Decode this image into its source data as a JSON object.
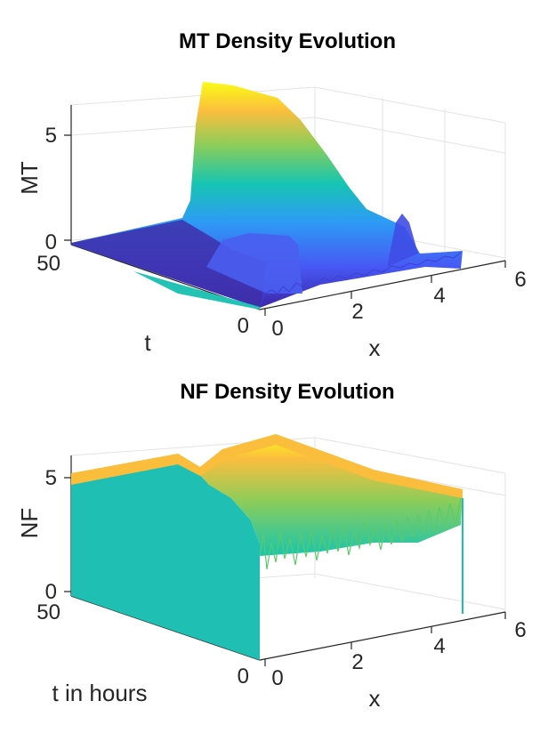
{
  "chart_data": [
    {
      "type": "surface",
      "title": "MT Density Evolution",
      "xlabel": "x",
      "ylabel": "t",
      "zlabel": "MT",
      "xlim": [
        0,
        6
      ],
      "ylim": [
        0,
        50
      ],
      "zlim": [
        0,
        6.5
      ],
      "xticks": [
        "0",
        "2",
        "4",
        "6"
      ],
      "yticks": [
        "0",
        "50"
      ],
      "zticks": [
        "0",
        "5"
      ],
      "colormap": [
        "#3e26a8",
        "#4758f4",
        "#2d9bf5",
        "#16c5b1",
        "#8ccd59",
        "#fbbe3e",
        "#f9fb15"
      ],
      "grid": true,
      "profile_x": [
        0,
        0.5,
        1.0,
        1.5,
        2.0,
        2.5,
        3.0,
        3.5,
        4.0,
        4.5,
        4.9
      ],
      "profile_at_t50": [
        6.2,
        6.0,
        5.5,
        4.2,
        2.5,
        1.2,
        0.6,
        0.3,
        0.1,
        0.05,
        0.05
      ],
      "profile_at_t0": [
        0.5,
        0.3,
        0.2,
        1.0,
        0.1,
        0.0,
        0.1,
        1.1,
        0.1,
        0.05,
        0.1
      ]
    },
    {
      "type": "surface",
      "title": "NF Density Evolution",
      "xlabel": "x",
      "ylabel": "t in hours",
      "zlabel": "NF",
      "xlim": [
        0,
        6
      ],
      "ylim": [
        0,
        50
      ],
      "zlim": [
        0,
        6
      ],
      "xticks": [
        "0",
        "2",
        "4",
        "6"
      ],
      "yticks": [
        "0",
        "50"
      ],
      "zticks": [
        "0",
        "5"
      ],
      "colormap": [
        "#16c5b1",
        "#8ccd59",
        "#fbbe3e",
        "#f9fb15"
      ],
      "grid": true,
      "profile_x": [
        0,
        0.5,
        1.0,
        1.5,
        2.0,
        2.5,
        3.0,
        3.5,
        4.0,
        4.5,
        4.9
      ],
      "profile_at_t50": [
        5.1,
        5.1,
        5.0,
        4.5,
        4.5,
        4.5,
        5.2,
        5.1,
        4.9,
        4.8,
        4.8
      ],
      "profile_at_t0": [
        5.0,
        4.4,
        3.3,
        3.6,
        3.0,
        3.3,
        2.6,
        3.7,
        3.0,
        3.4,
        3.2
      ]
    }
  ]
}
